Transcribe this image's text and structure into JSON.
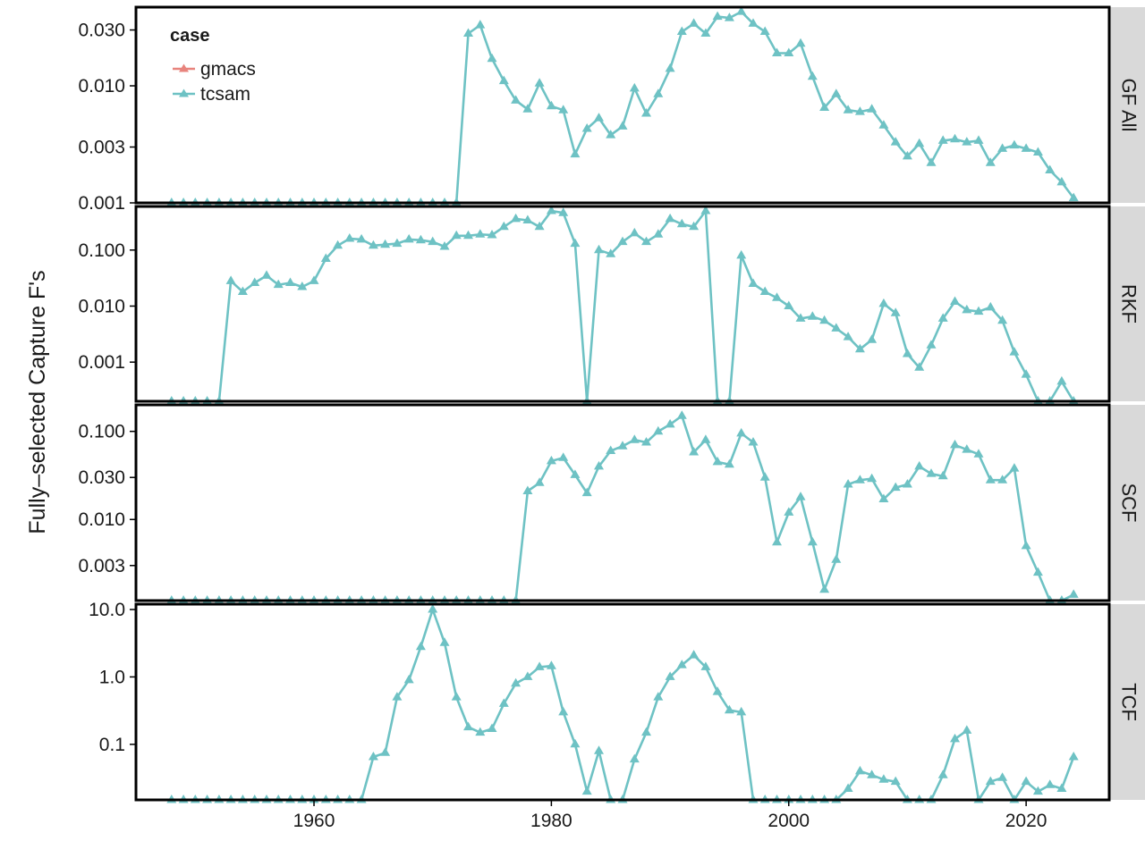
{
  "chart_data": {
    "type": "line",
    "ylabel": "Fully–selected Capture F's",
    "x_ticks": [
      1960,
      1980,
      2000,
      2020
    ],
    "xlim": [
      1945,
      2027
    ],
    "colors": {
      "gmacs": "#e8847d",
      "tcsam": "#6ec2c4"
    },
    "legend": {
      "title": "case",
      "position": "top-left",
      "entries": [
        "gmacs",
        "tcsam"
      ]
    },
    "panels": [
      {
        "label": "GF All",
        "scale": "log",
        "ylim": [
          0.001,
          0.047
        ],
        "y_ticks": [
          0.001,
          0.003,
          0.01,
          0.03
        ],
        "y_tick_labels": [
          "0.001",
          "0.003",
          "0.010",
          "0.030"
        ],
        "series": [
          {
            "name": "tcsam",
            "x": [
              1948,
              1949,
              1950,
              1951,
              1952,
              1953,
              1954,
              1955,
              1956,
              1957,
              1958,
              1959,
              1960,
              1961,
              1962,
              1963,
              1964,
              1965,
              1966,
              1967,
              1968,
              1969,
              1970,
              1971,
              1972,
              1973,
              1974,
              1975,
              1976,
              1977,
              1978,
              1979,
              1980,
              1981,
              1982,
              1983,
              1984,
              1985,
              1986,
              1987,
              1988,
              1989,
              1990,
              1991,
              1992,
              1993,
              1994,
              1995,
              1996,
              1997,
              1998,
              1999,
              2000,
              2001,
              2002,
              2003,
              2004,
              2005,
              2006,
              2007,
              2008,
              2009,
              2010,
              2011,
              2012,
              2013,
              2014,
              2015,
              2016,
              2017,
              2018,
              2019,
              2020,
              2021,
              2022,
              2023,
              2024
            ],
            "y": [
              0.001,
              0.001,
              0.001,
              0.001,
              0.001,
              0.001,
              0.001,
              0.001,
              0.001,
              0.001,
              0.001,
              0.001,
              0.001,
              0.001,
              0.001,
              0.001,
              0.001,
              0.001,
              0.001,
              0.001,
              0.001,
              0.001,
              0.001,
              0.001,
              0.001,
              0.028,
              0.033,
              0.017,
              0.011,
              0.0075,
              0.0063,
              0.0105,
              0.0067,
              0.0062,
              0.0026,
              0.0043,
              0.0053,
              0.0038,
              0.0045,
              0.0095,
              0.0058,
              0.0085,
              0.014,
              0.029,
              0.034,
              0.028,
              0.039,
              0.038,
              0.043,
              0.034,
              0.029,
              0.019,
              0.019,
              0.023,
              0.012,
              0.0065,
              0.0085,
              0.0062,
              0.006,
              0.0063,
              0.0046,
              0.0033,
              0.0025,
              0.0032,
              0.0022,
              0.0034,
              0.0035,
              0.0033,
              0.0034,
              0.0022,
              0.0029,
              0.0031,
              0.0029,
              0.0027,
              0.0019,
              0.0015,
              0.0011
            ]
          }
        ]
      },
      {
        "label": "RKF",
        "scale": "log",
        "ylim": [
          0.0002,
          0.6
        ],
        "y_ticks": [
          0.001,
          0.01,
          0.1
        ],
        "y_tick_labels": [
          "0.001",
          "0.010",
          "0.100"
        ],
        "series": [
          {
            "name": "tcsam",
            "x": [
              1948,
              1949,
              1950,
              1951,
              1952,
              1953,
              1954,
              1955,
              1956,
              1957,
              1958,
              1959,
              1960,
              1961,
              1962,
              1963,
              1964,
              1965,
              1966,
              1967,
              1968,
              1969,
              1970,
              1971,
              1972,
              1973,
              1974,
              1975,
              1976,
              1977,
              1978,
              1979,
              1980,
              1981,
              1982,
              1983,
              1984,
              1985,
              1986,
              1987,
              1988,
              1989,
              1990,
              1991,
              1992,
              1993,
              1994,
              1995,
              1996,
              1997,
              1998,
              1999,
              2000,
              2001,
              2002,
              2003,
              2004,
              2005,
              2006,
              2007,
              2008,
              2009,
              2010,
              2011,
              2012,
              2013,
              2014,
              2015,
              2016,
              2017,
              2018,
              2019,
              2020,
              2021,
              2022,
              2023,
              2024
            ],
            "y": [
              0.0002,
              0.0002,
              0.0002,
              0.0002,
              0.0002,
              0.028,
              0.018,
              0.026,
              0.035,
              0.024,
              0.026,
              0.022,
              0.028,
              0.07,
              0.12,
              0.16,
              0.155,
              0.12,
              0.125,
              0.13,
              0.155,
              0.15,
              0.14,
              0.115,
              0.18,
              0.18,
              0.19,
              0.185,
              0.26,
              0.36,
              0.34,
              0.26,
              0.5,
              0.46,
              0.13,
              0.0002,
              0.1,
              0.085,
              0.14,
              0.2,
              0.14,
              0.19,
              0.36,
              0.29,
              0.26,
              0.5,
              0.0002,
              0.0002,
              0.08,
              0.025,
              0.018,
              0.014,
              0.01,
              0.006,
              0.0065,
              0.0055,
              0.004,
              0.0028,
              0.0017,
              0.0025,
              0.011,
              0.0075,
              0.0014,
              0.0008,
              0.002,
              0.006,
              0.012,
              0.0085,
              0.008,
              0.0095,
              0.0055,
              0.0015,
              0.0006,
              0.0002,
              0.0002,
              0.00045,
              0.0002
            ]
          }
        ]
      },
      {
        "label": "SCF",
        "scale": "log",
        "ylim": [
          0.0012,
          0.2
        ],
        "y_ticks": [
          0.003,
          0.01,
          0.03,
          0.1
        ],
        "y_tick_labels": [
          "0.003",
          "0.010",
          "0.030",
          "0.100"
        ],
        "series": [
          {
            "name": "tcsam",
            "x": [
              1948,
              1949,
              1950,
              1951,
              1952,
              1953,
              1954,
              1955,
              1956,
              1957,
              1958,
              1959,
              1960,
              1961,
              1962,
              1963,
              1964,
              1965,
              1966,
              1967,
              1968,
              1969,
              1970,
              1971,
              1972,
              1973,
              1974,
              1975,
              1976,
              1977,
              1978,
              1979,
              1980,
              1981,
              1982,
              1983,
              1984,
              1985,
              1986,
              1987,
              1988,
              1989,
              1990,
              1991,
              1992,
              1993,
              1994,
              1995,
              1996,
              1997,
              1998,
              1999,
              2000,
              2001,
              2002,
              2003,
              2004,
              2005,
              2006,
              2007,
              2008,
              2009,
              2010,
              2011,
              2012,
              2013,
              2014,
              2015,
              2016,
              2017,
              2018,
              2019,
              2020,
              2021,
              2022,
              2023,
              2024
            ],
            "y": [
              0.0012,
              0.0012,
              0.0012,
              0.0012,
              0.0012,
              0.0012,
              0.0012,
              0.0012,
              0.0012,
              0.0012,
              0.0012,
              0.0012,
              0.0012,
              0.0012,
              0.0012,
              0.0012,
              0.0012,
              0.0012,
              0.0012,
              0.0012,
              0.0012,
              0.0012,
              0.0012,
              0.0012,
              0.0012,
              0.0012,
              0.0012,
              0.0012,
              0.0012,
              0.0012,
              0.021,
              0.026,
              0.046,
              0.05,
              0.032,
              0.02,
              0.04,
              0.06,
              0.068,
              0.08,
              0.075,
              0.1,
              0.12,
              0.15,
              0.058,
              0.08,
              0.045,
              0.042,
              0.095,
              0.075,
              0.03,
              0.0055,
              0.012,
              0.018,
              0.0055,
              0.0016,
              0.0035,
              0.025,
              0.028,
              0.029,
              0.017,
              0.023,
              0.025,
              0.04,
              0.033,
              0.031,
              0.07,
              0.062,
              0.055,
              0.028,
              0.028,
              0.038,
              0.005,
              0.0025,
              0.0012,
              0.0012,
              0.0014
            ]
          }
        ]
      },
      {
        "label": "TCF",
        "scale": "log",
        "ylim": [
          0.015,
          12
        ],
        "y_ticks": [
          0.1,
          1,
          10
        ],
        "y_tick_labels": [
          "0.1",
          "1.0",
          "10.0"
        ],
        "series": [
          {
            "name": "tcsam",
            "x": [
              1948,
              1949,
              1950,
              1951,
              1952,
              1953,
              1954,
              1955,
              1956,
              1957,
              1958,
              1959,
              1960,
              1961,
              1962,
              1963,
              1964,
              1965,
              1966,
              1967,
              1968,
              1969,
              1970,
              1971,
              1972,
              1973,
              1974,
              1975,
              1976,
              1977,
              1978,
              1979,
              1980,
              1981,
              1982,
              1983,
              1984,
              1985,
              1986,
              1987,
              1988,
              1989,
              1990,
              1991,
              1992,
              1993,
              1994,
              1995,
              1996,
              1997,
              1998,
              1999,
              2000,
              2001,
              2002,
              2003,
              2004,
              2005,
              2006,
              2007,
              2008,
              2009,
              2010,
              2011,
              2012,
              2013,
              2014,
              2015,
              2016,
              2017,
              2018,
              2019,
              2020,
              2021,
              2022,
              2023,
              2024
            ],
            "y": [
              0.015,
              0.015,
              0.015,
              0.015,
              0.015,
              0.015,
              0.015,
              0.015,
              0.015,
              0.015,
              0.015,
              0.015,
              0.015,
              0.015,
              0.015,
              0.015,
              0.015,
              0.065,
              0.075,
              0.5,
              0.9,
              2.8,
              10,
              3.2,
              0.5,
              0.18,
              0.15,
              0.17,
              0.4,
              0.8,
              1.0,
              1.4,
              1.45,
              0.3,
              0.1,
              0.02,
              0.08,
              0.015,
              0.015,
              0.06,
              0.15,
              0.5,
              1.0,
              1.5,
              2.1,
              1.4,
              0.6,
              0.32,
              0.3,
              0.015,
              0.015,
              0.015,
              0.015,
              0.015,
              0.015,
              0.015,
              0.015,
              0.022,
              0.04,
              0.035,
              0.03,
              0.028,
              0.015,
              0.015,
              0.015,
              0.035,
              0.12,
              0.16,
              0.015,
              0.028,
              0.032,
              0.015,
              0.028,
              0.02,
              0.025,
              0.022,
              0.065
            ]
          }
        ]
      }
    ]
  }
}
